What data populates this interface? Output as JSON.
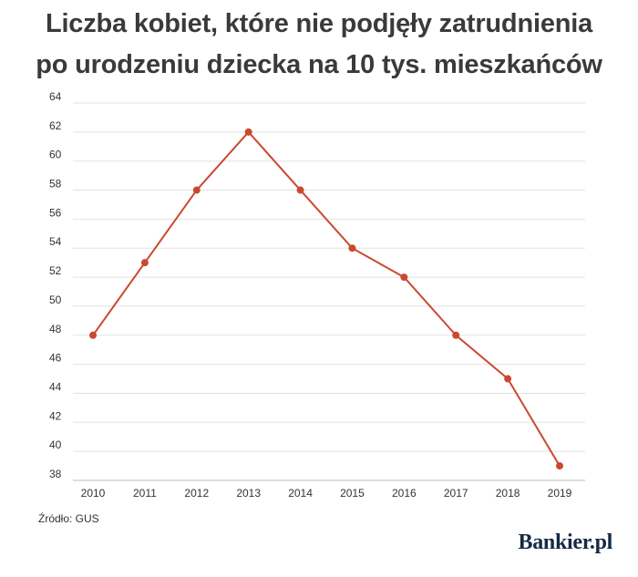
{
  "title_lines": [
    "Liczba kobiet, które nie podjęły zatrudnienia",
    "po urodzeniu dziecka na 10 tys. mieszkańców"
  ],
  "source": "Źródło: GUS",
  "brand": "Bankier.pl",
  "colors": {
    "line": "#c94a2f",
    "grid": "#e2e2e2",
    "axis": "#bdbdbd",
    "tick_text": "#333333"
  },
  "chart_data": {
    "type": "line",
    "title": "Liczba kobiet, które nie podjęły zatrudnienia po urodzeniu dziecka na 10 tys. mieszkańców",
    "xlabel": "",
    "ylabel": "",
    "x": [
      "2010",
      "2011",
      "2012",
      "2013",
      "2014",
      "2015",
      "2016",
      "2017",
      "2018",
      "2019"
    ],
    "series": [
      {
        "values": [
          48,
          53,
          58,
          62,
          58,
          54,
          52,
          48,
          45,
          39
        ]
      }
    ],
    "ylim": [
      38,
      64
    ],
    "yticks": [
      64,
      62,
      60,
      58,
      56,
      54,
      52,
      50,
      48,
      46,
      44,
      42,
      40,
      38
    ],
    "grid": true,
    "legend": "none"
  }
}
